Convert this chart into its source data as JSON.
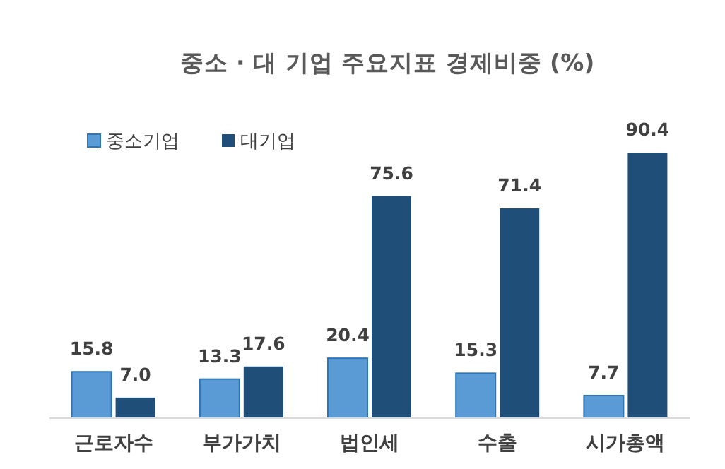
{
  "chart_data": {
    "type": "bar",
    "title": "중소 · 대 기업 주요지표 경제비중 (%)",
    "categories": [
      "근로자수",
      "부가가치",
      "법인세",
      "수출",
      "시가총액"
    ],
    "series": [
      {
        "name": "중소기업",
        "color": "#5b9bd5",
        "values": [
          15.8,
          13.3,
          20.4,
          15.3,
          7.7
        ],
        "value_labels": [
          "15.8",
          "13.3",
          "20.4",
          "15.3",
          "7.7"
        ]
      },
      {
        "name": "대기업",
        "color": "#1f4e79",
        "values": [
          7.0,
          17.6,
          75.6,
          71.4,
          90.4
        ],
        "value_labels": [
          "7.0",
          "17.6",
          "75.6",
          "71.4",
          "90.4"
        ]
      }
    ],
    "legend": "top left",
    "grid": false
  }
}
